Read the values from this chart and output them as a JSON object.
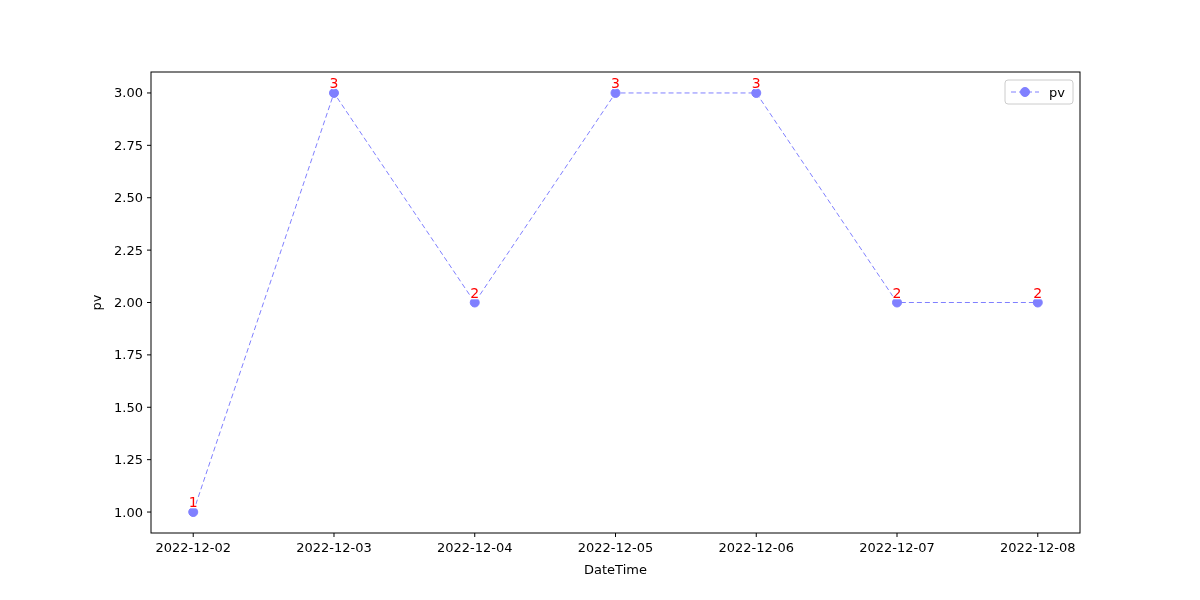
{
  "chart_data": {
    "type": "line",
    "xlabel": "DateTime",
    "ylabel": "pv",
    "x": [
      "2022-12-02",
      "2022-12-03",
      "2022-12-04",
      "2022-12-05",
      "2022-12-06",
      "2022-12-07",
      "2022-12-08"
    ],
    "series": [
      {
        "name": "pv",
        "color": "#8080ff",
        "values": [
          1,
          3,
          2,
          3,
          3,
          2,
          2
        ]
      }
    ],
    "xlim": [
      "2022-12-01T16:48",
      "2022-12-08T07:12"
    ],
    "xticks": [
      "2022-12-02",
      "2022-12-03",
      "2022-12-04",
      "2022-12-05",
      "2022-12-06",
      "2022-12-07",
      "2022-12-08"
    ],
    "ylim": [
      0.9,
      3.1
    ],
    "yticks": [
      {
        "value": 1,
        "label": "1.00"
      },
      {
        "value": 1.25,
        "label": "1.25"
      },
      {
        "value": 1.5,
        "label": "1.50"
      },
      {
        "value": 1.75,
        "label": "1.75"
      },
      {
        "value": 2,
        "label": "2.00"
      },
      {
        "value": 2.25,
        "label": "2.25"
      },
      {
        "value": 2.5,
        "label": "2.50"
      },
      {
        "value": 2.75,
        "label": "2.75"
      },
      {
        "value": 3,
        "label": "3.00"
      }
    ],
    "data_labels": true,
    "legend": "top right",
    "marker": "circle",
    "line_style": "dashed",
    "grid": false
  }
}
